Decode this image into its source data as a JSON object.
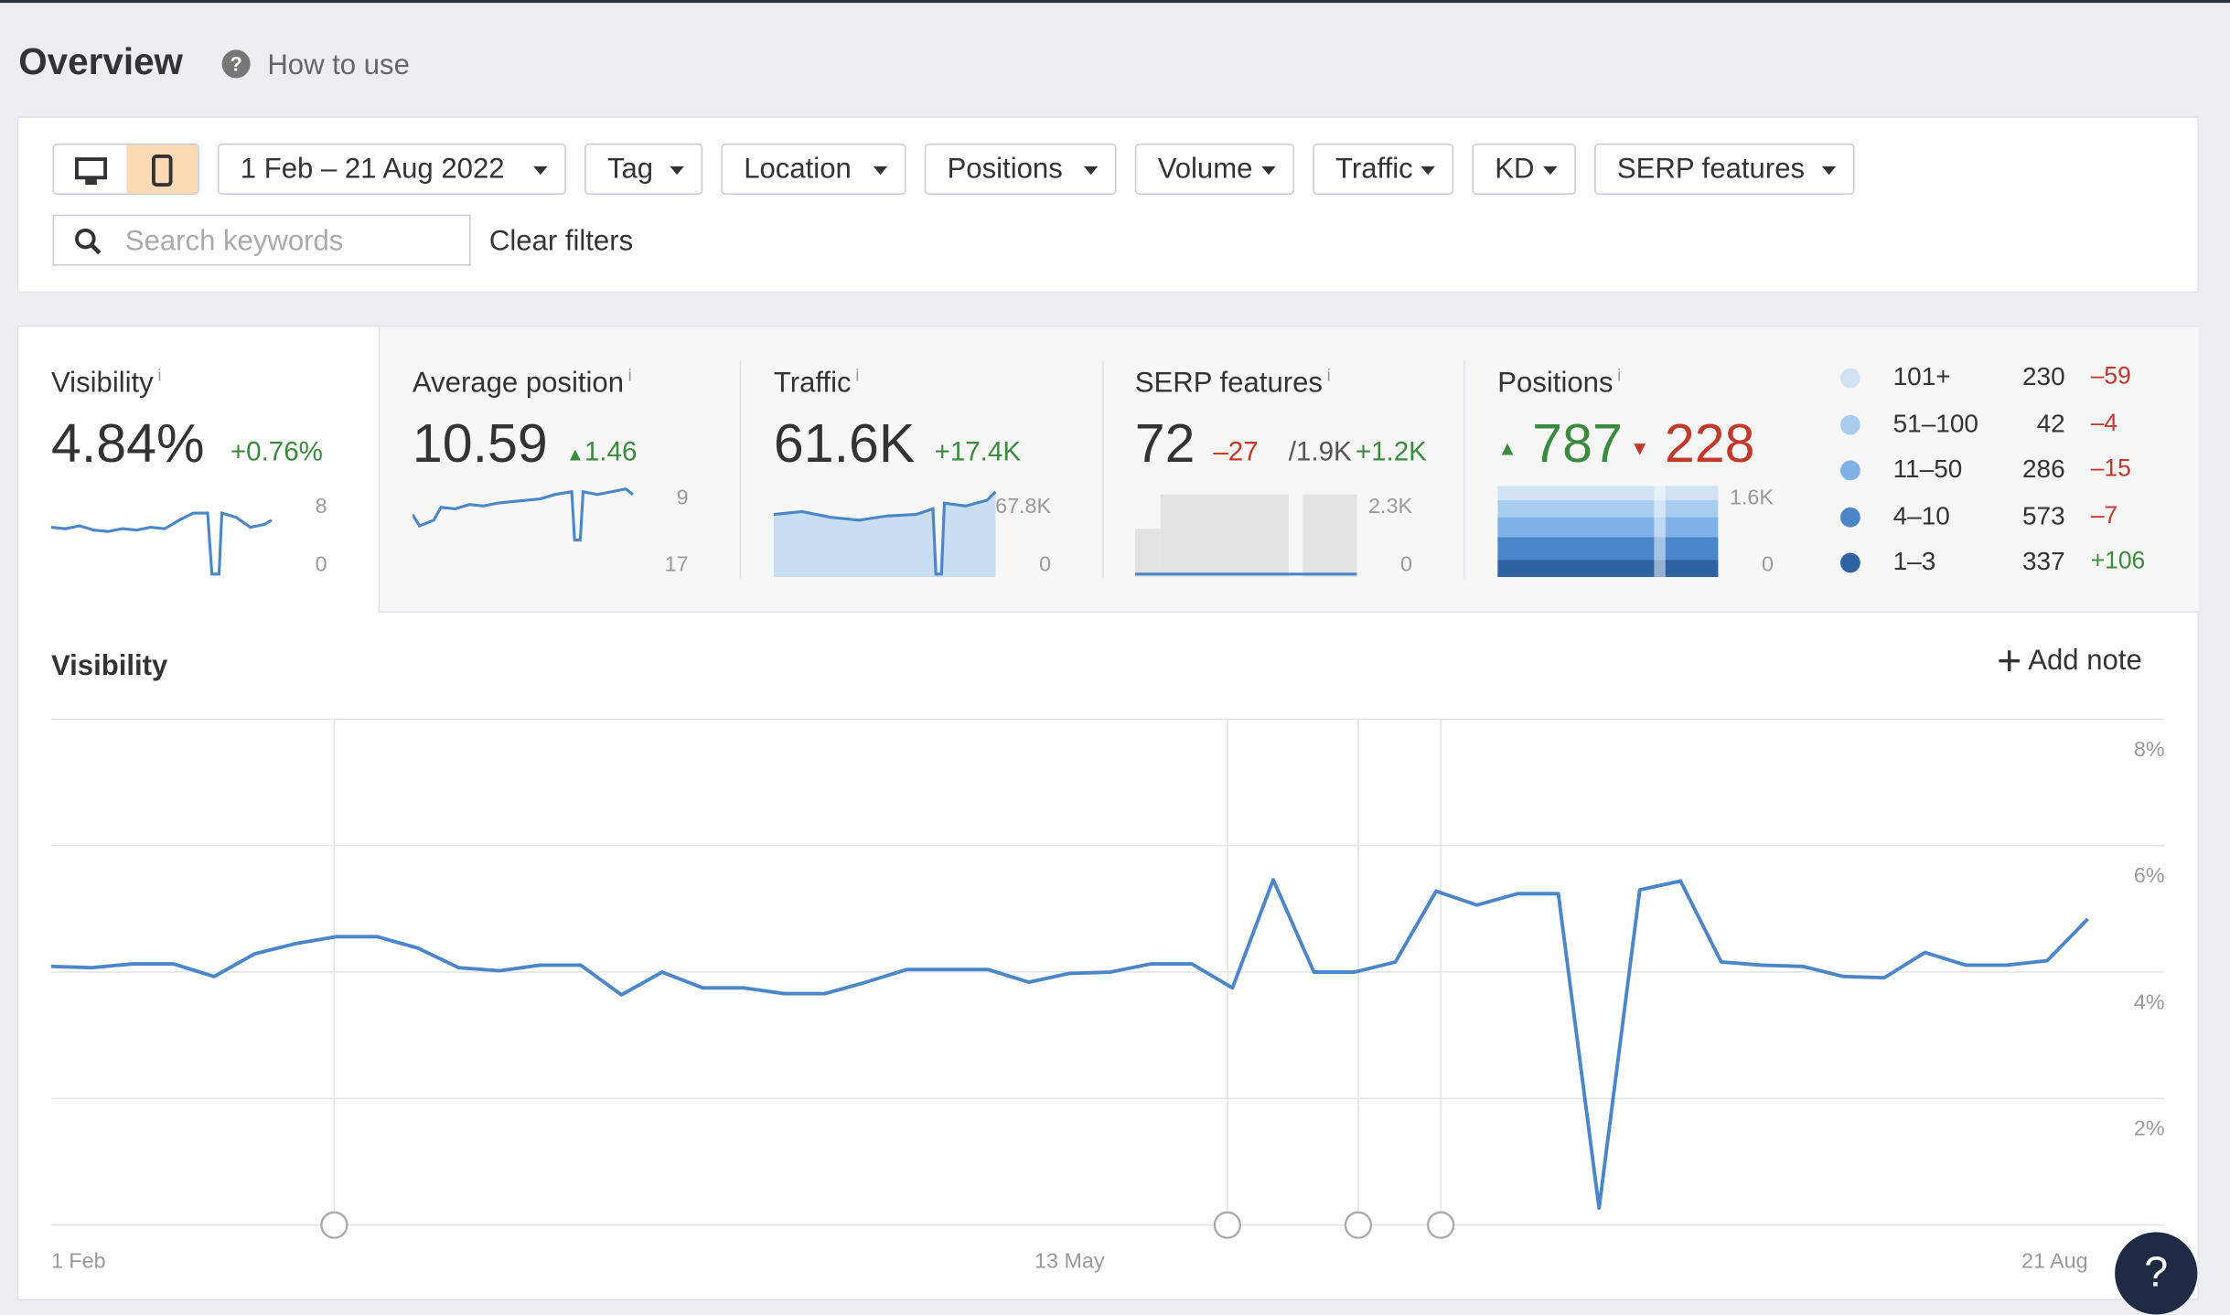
{
  "header": {
    "title": "Overview",
    "help_icon": "?",
    "help": "How to use"
  },
  "filters": {
    "date": "1 Feb – 21 Aug 2022",
    "dropdowns": [
      "Tag",
      "Location",
      "Positions",
      "Volume",
      "Traffic",
      "KD",
      "SERP features"
    ],
    "search_placeholder": "Search keywords",
    "clear": "Clear filters"
  },
  "info_mark": "i",
  "metrics": [
    {
      "label": "Visibility",
      "value": "4.84%",
      "change": "+0.76%",
      "axis_top": "8",
      "axis_bottom": "0"
    },
    {
      "label": "Average position",
      "value": "10.59",
      "change": "1.46",
      "axis_top": "9",
      "axis_bottom": "17"
    },
    {
      "label": "Traffic",
      "value": "61.6K",
      "change": "+17.4K",
      "axis_top": "67.8K",
      "axis_bottom": "0"
    },
    {
      "label": "SERP features",
      "value": "72",
      "change": "–27",
      "extra": "/1.9K",
      "extra_change": "+1.2K",
      "axis_top": "2.3K",
      "axis_bottom": "0"
    },
    {
      "label": "Positions",
      "up": "787",
      "down": "228",
      "axis_top": "1.6K",
      "axis_bottom": "0"
    }
  ],
  "positions_legend": [
    {
      "range": "101+",
      "count": "230",
      "change": "–59",
      "color": "#cfe3f5"
    },
    {
      "range": "51–100",
      "count": "42",
      "change": "–4",
      "color": "#a9cdef"
    },
    {
      "range": "11–50",
      "count": "286",
      "change": "–15",
      "color": "#7fb2e6"
    },
    {
      "range": "4–10",
      "count": "573",
      "change": "–7",
      "color": "#4a86c8"
    },
    {
      "range": "1–3",
      "count": "337",
      "change": "+106",
      "color": "#2f62a0"
    }
  ],
  "help_button": "?",
  "chart_data": {
    "type": "line",
    "title": "Visibility",
    "add_note": "Add note",
    "categories": [
      "1 Feb",
      null,
      null,
      null,
      null,
      null,
      null,
      null,
      null,
      null,
      null,
      null,
      null,
      null,
      null,
      null,
      null,
      null,
      null,
      null,
      null,
      null,
      null,
      null,
      null,
      "13 May",
      null,
      null,
      null,
      null,
      null,
      null,
      null,
      null,
      null,
      null,
      null,
      null,
      null,
      null,
      null,
      null,
      null,
      null,
      null,
      null,
      null,
      null,
      null,
      null,
      "21 Aug"
    ],
    "series": [
      {
        "name": "Visibility",
        "color": "#4a86c8",
        "values": [
          4.09,
          4.07,
          4.13,
          4.13,
          3.93,
          4.29,
          4.45,
          4.56,
          4.56,
          4.38,
          4.07,
          4.02,
          4.11,
          4.11,
          3.64,
          4.0,
          3.75,
          3.75,
          3.66,
          3.66,
          3.84,
          4.04,
          4.04,
          4.04,
          3.84,
          3.98,
          4.0,
          4.13,
          4.13,
          3.75,
          5.46,
          4.0,
          4.0,
          4.16,
          5.28,
          5.06,
          5.24,
          5.24,
          0.27,
          5.3,
          5.44,
          4.16,
          4.11,
          4.09,
          3.93,
          3.91,
          4.31,
          4.11,
          4.11,
          4.18,
          4.84
        ]
      }
    ],
    "ylim": [
      0,
      8
    ],
    "yticks": [
      {
        "value": 2,
        "label": "2%"
      },
      {
        "value": 4,
        "label": "4%"
      },
      {
        "value": 6,
        "label": "6%"
      },
      {
        "value": 8,
        "label": "8%"
      }
    ],
    "grid": true
  }
}
